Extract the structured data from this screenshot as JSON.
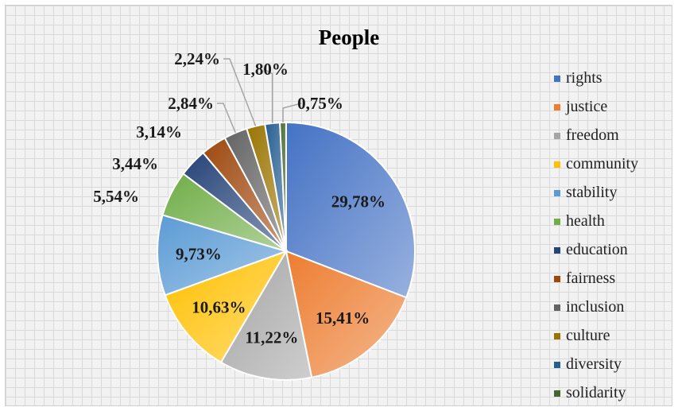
{
  "chart_data": {
    "type": "pie",
    "title": "People",
    "categories": [
      "rights",
      "justice",
      "freedom",
      "community",
      "stability",
      "health",
      "education",
      "fairness",
      "inclusion",
      "culture",
      "diversity",
      "solidarity"
    ],
    "values": [
      29.78,
      15.41,
      11.22,
      10.63,
      9.73,
      5.54,
      3.44,
      3.14,
      2.84,
      2.24,
      1.8,
      0.75
    ],
    "labels": [
      "29,78%",
      "15,41%",
      "11,22%",
      "10,63%",
      "9,73%",
      "5,54%",
      "3,44%",
      "3,14%",
      "2,84%",
      "2,24%",
      "1,80%",
      "0,75%"
    ],
    "colors": [
      "#4472c4",
      "#ed7d31",
      "#a5a5a5",
      "#ffc000",
      "#5b9bd5",
      "#70ad47",
      "#264478",
      "#9e480e",
      "#636363",
      "#997300",
      "#255e91",
      "#43682b"
    ],
    "legend_position": "right",
    "grid": true
  }
}
